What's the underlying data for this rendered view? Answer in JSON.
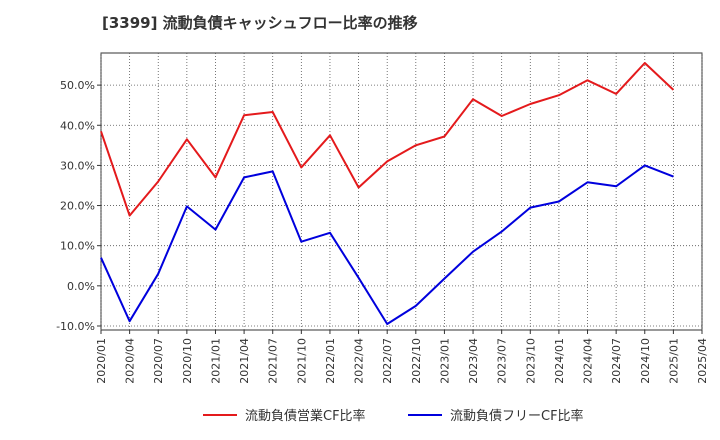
{
  "chart_data": {
    "type": "line",
    "title": "[3399]  流動負債キャッシュフロー比率の推移",
    "xlabel": "",
    "ylabel": "",
    "categories": [
      "2020/01",
      "2020/04",
      "2020/07",
      "2020/10",
      "2021/01",
      "2021/04",
      "2021/07",
      "2021/10",
      "2022/01",
      "2022/04",
      "2022/07",
      "2022/10",
      "2023/01",
      "2023/04",
      "2023/07",
      "2023/10",
      "2024/01",
      "2024/04",
      "2024/07",
      "2024/10",
      "2025/01",
      "2025/04"
    ],
    "series": [
      {
        "name": "流動負債営業CF比率",
        "color": "#e41a1c",
        "values": [
          38.5,
          17.5,
          26.0,
          36.5,
          27.0,
          42.5,
          43.3,
          29.5,
          37.5,
          24.5,
          31.0,
          35.0,
          37.2,
          46.5,
          42.3,
          45.3,
          47.5,
          51.2,
          47.8,
          55.5,
          48.8,
          null
        ]
      },
      {
        "name": "流動負債フリーCF比率",
        "color": "#0000dd",
        "values": [
          7.0,
          -8.8,
          3.0,
          19.8,
          14.0,
          27.0,
          28.5,
          11.0,
          13.2,
          2.0,
          -9.5,
          -5.0,
          1.8,
          8.5,
          13.5,
          19.5,
          21.0,
          25.8,
          24.8,
          30.0,
          27.2,
          null
        ]
      }
    ],
    "ylim": [
      -11,
      58
    ],
    "yticks": [
      -10,
      0,
      10,
      20,
      30,
      40,
      50
    ],
    "ytick_labels": [
      "-10.0%",
      "0.0%",
      "10.0%",
      "20.0%",
      "30.0%",
      "40.0%",
      "50.0%"
    ],
    "grid": true,
    "grid_style": "dotted",
    "legend_position": "bottom-center"
  }
}
